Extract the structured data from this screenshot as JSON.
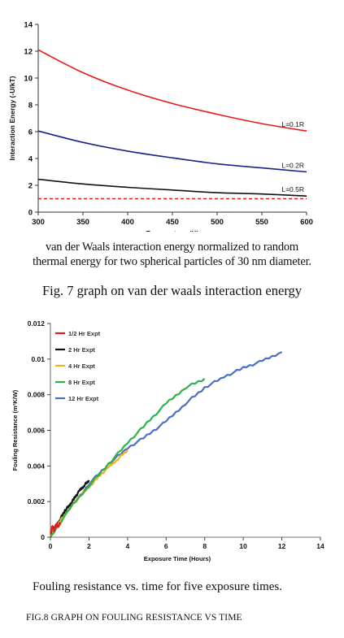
{
  "figure7": {
    "caption_line1": "van der Waals interaction energy normalized to random",
    "caption_line2": "thermal energy for two spherical particles of 30 nm diameter.",
    "title": "Fig. 7 graph on van der waals interaction energy"
  },
  "figure8": {
    "caption_line1": "Fouling resistance vs. time for five exposure times.",
    "title": "FIG.8 GRAPH ON FOULING RESISTANCE VS TIME"
  },
  "chart_data": [
    {
      "type": "line",
      "xlabel": "Temperature (K)",
      "ylabel": "Interaction Energy (-U/kT)",
      "xlim": [
        300,
        600
      ],
      "ylim": [
        0,
        14
      ],
      "xticks": [
        300,
        350,
        400,
        450,
        500,
        550,
        600
      ],
      "yticks": [
        0,
        2,
        4,
        6,
        8,
        10,
        12,
        14
      ],
      "grid": false,
      "x": [
        300,
        350,
        400,
        450,
        500,
        550,
        600
      ],
      "series": [
        {
          "name": "L=0.1R",
          "color": "#e8191c",
          "values": [
            12.1,
            10.4,
            9.1,
            8.1,
            7.3,
            6.6,
            6.05
          ]
        },
        {
          "name": "L=0.2R",
          "color": "#1b1f8a",
          "values": [
            6.05,
            5.2,
            4.55,
            4.05,
            3.6,
            3.3,
            3.0
          ]
        },
        {
          "name": "L=0.5R",
          "color": "#111111",
          "values": [
            2.45,
            2.1,
            1.85,
            1.65,
            1.45,
            1.35,
            1.2
          ]
        },
        {
          "name": "",
          "color": "#e8191c",
          "dashed": true,
          "values": [
            1,
            1,
            1,
            1,
            1,
            1,
            1
          ]
        }
      ]
    },
    {
      "type": "line",
      "xlabel": "Exposure Time (Hours)",
      "ylabel": "Fouling Resistance (m²K/W)",
      "xlim": [
        0,
        14
      ],
      "ylim": [
        0,
        0.012
      ],
      "xticks": [
        0,
        2,
        4,
        6,
        8,
        10,
        12,
        14
      ],
      "yticks": [
        "0",
        "0.002",
        "0.004",
        "0.006",
        "0.008",
        "0.01",
        "0.012"
      ],
      "grid": false,
      "legend_position": "top-left",
      "series": [
        {
          "name": "1/2 Hr Expt",
          "color": "#e8191c",
          "x": [
            0,
            0.1,
            0.2,
            0.3,
            0.4,
            0.5
          ],
          "values": [
            0.0002,
            0.0006,
            0.0004,
            0.0007,
            0.0006,
            0.0008
          ]
        },
        {
          "name": "2 Hr Expt",
          "color": "#111111",
          "x": [
            0,
            0.25,
            0.5,
            0.75,
            1.0,
            1.25,
            1.5,
            1.75,
            2.0
          ],
          "values": [
            0,
            0.0006,
            0.001,
            0.0015,
            0.0018,
            0.0022,
            0.0026,
            0.0029,
            0.0032
          ]
        },
        {
          "name": "4 Hr Expt",
          "color": "#f2b21b",
          "x": [
            0,
            0.5,
            1.0,
            1.5,
            2.0,
            2.5,
            3.0,
            3.5,
            4.0
          ],
          "values": [
            0,
            0.0009,
            0.0016,
            0.0023,
            0.0028,
            0.0034,
            0.0039,
            0.0044,
            0.0049
          ]
        },
        {
          "name": "8 Hr Expt",
          "color": "#2db34a",
          "x": [
            0,
            1,
            2,
            3,
            4,
            5,
            6,
            7,
            8
          ],
          "values": [
            0,
            0.0016,
            0.0029,
            0.0041,
            0.0053,
            0.0064,
            0.0075,
            0.0084,
            0.0089
          ]
        },
        {
          "name": "12 Hr Expt",
          "color": "#4a6fc2",
          "x": [
            0,
            1,
            2,
            3,
            4,
            5,
            6,
            7,
            8,
            9,
            10,
            11,
            12
          ],
          "values": [
            0,
            0.0016,
            0.003,
            0.0041,
            0.005,
            0.0057,
            0.0065,
            0.0075,
            0.0084,
            0.009,
            0.0095,
            0.0099,
            0.0104
          ]
        }
      ]
    }
  ]
}
